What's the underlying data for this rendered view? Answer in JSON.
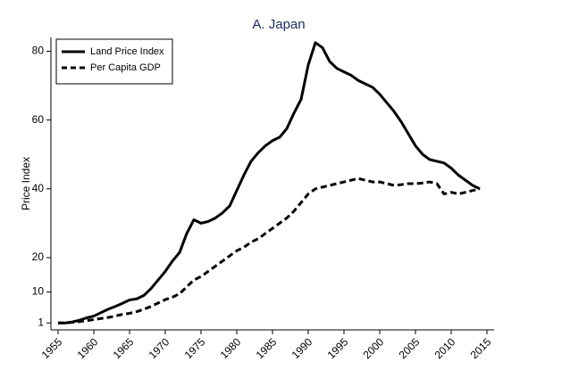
{
  "chart_data": {
    "type": "line",
    "title": "A. Japan",
    "y_label": "Price Index",
    "x": [
      1955,
      1956,
      1957,
      1958,
      1959,
      1960,
      1961,
      1962,
      1963,
      1964,
      1965,
      1966,
      1967,
      1968,
      1969,
      1970,
      1971,
      1972,
      1973,
      1974,
      1975,
      1976,
      1977,
      1978,
      1979,
      1980,
      1981,
      1982,
      1983,
      1984,
      1985,
      1986,
      1987,
      1988,
      1989,
      1990,
      1991,
      1992,
      1993,
      1994,
      1995,
      1996,
      1997,
      1998,
      1999,
      2000,
      2001,
      2002,
      2003,
      2004,
      2005,
      2006,
      2007,
      2008,
      2009,
      2010,
      2011,
      2012,
      2013,
      2014
    ],
    "series": [
      {
        "name": "Land Price Index",
        "color": "#000000",
        "dash": "solid",
        "values": [
          1,
          1,
          1.3,
          1.8,
          2.5,
          3,
          4,
          5,
          5.8,
          6.7,
          7.7,
          8,
          9,
          11,
          13.5,
          16,
          19,
          21.5,
          27,
          31,
          30,
          30.5,
          31.5,
          33,
          35,
          39.5,
          44,
          48,
          50.5,
          52.5,
          54,
          55,
          57.5,
          62,
          66,
          76,
          82.5,
          81,
          77,
          75,
          74,
          73,
          71.5,
          70.5,
          69.5,
          67.5,
          65,
          62.5,
          59.5,
          56,
          52.5,
          50,
          48.5,
          48,
          47.5,
          46,
          44,
          42.5,
          41,
          40
        ]
      },
      {
        "name": "Per Capita GDP",
        "color": "#000000",
        "dash": "dashed",
        "values": [
          1,
          1,
          1.2,
          1.4,
          1.7,
          2,
          2.3,
          2.6,
          3,
          3.5,
          3.8,
          4.3,
          5,
          5.8,
          6.8,
          7.8,
          8.5,
          9.5,
          11.5,
          13.5,
          14.5,
          16,
          17.5,
          19,
          20.5,
          22,
          23,
          24.5,
          25.5,
          27,
          28.5,
          30,
          31.5,
          33.5,
          36,
          38.5,
          40,
          40.5,
          41,
          41.5,
          42,
          42.5,
          43,
          42.5,
          42,
          42,
          41.5,
          41,
          41.2,
          41.5,
          41.5,
          41.7,
          42,
          41.5,
          38.5,
          39,
          38.5,
          39,
          39.5,
          40
        ]
      }
    ],
    "xlim": [
      1954,
      2016
    ],
    "xticks": [
      1955,
      1960,
      1965,
      1970,
      1975,
      1980,
      1985,
      1990,
      1995,
      2000,
      2005,
      2010,
      2015
    ],
    "ylim": [
      -1,
      84
    ],
    "yticks": [
      1,
      10,
      20,
      40,
      60,
      80
    ],
    "legend": "top-left",
    "grid": false
  }
}
